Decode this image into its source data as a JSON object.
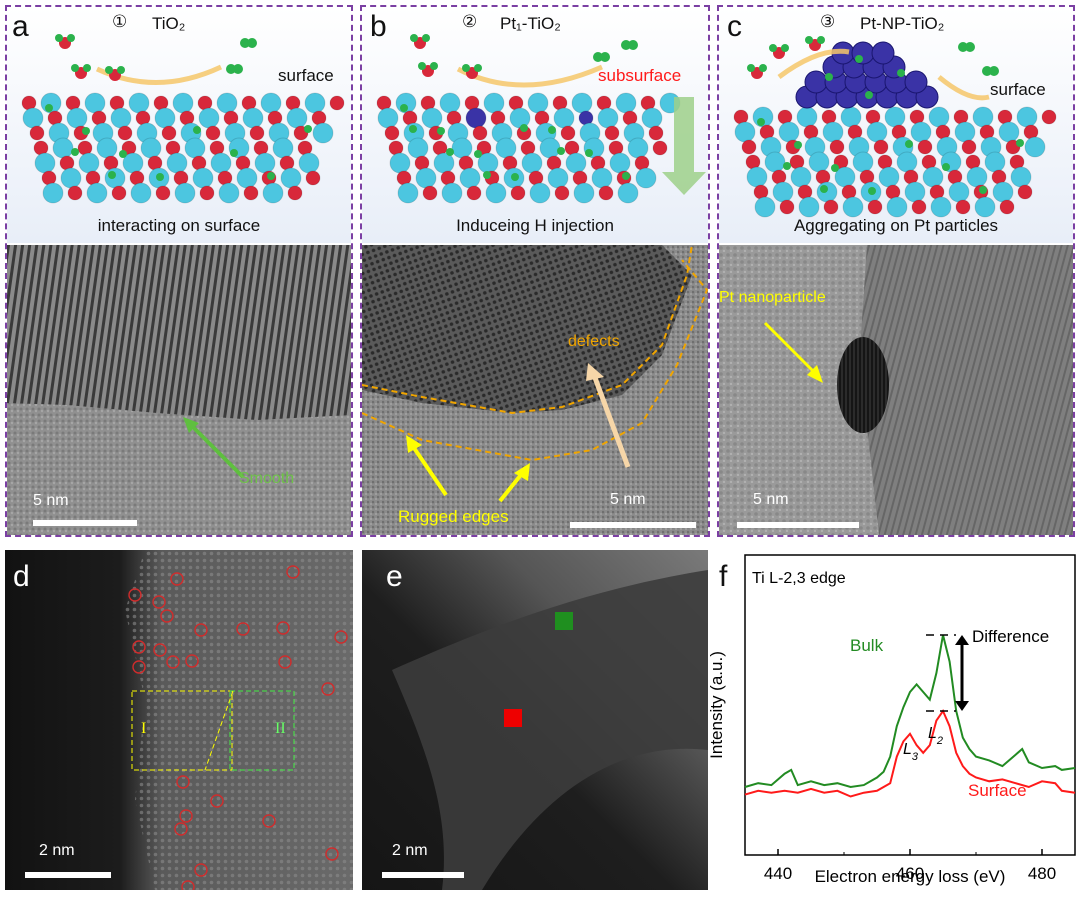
{
  "panels": {
    "a": {
      "letter": "a",
      "num": "①",
      "title": "TiO₂",
      "surface": "surface",
      "caption": "interacting on surface",
      "scale": "5 nm",
      "smooth": "Smooth"
    },
    "b": {
      "letter": "b",
      "num": "②",
      "title": "Pt₁-TiO₂",
      "subsurface": "subsurface",
      "caption": "Induceing H injection",
      "scale": "5 nm",
      "defects": "defects",
      "rugged": "Rugged edges"
    },
    "c": {
      "letter": "c",
      "num": "③",
      "title": "Pt-NP-TiO₂",
      "surface": "surface",
      "caption": "Aggregating on Pt particles",
      "scale": "5 nm",
      "np": "Pt nanoparticle"
    },
    "d": {
      "letter": "d",
      "scale": "2 nm",
      "region1": "I",
      "region2": "II"
    },
    "e": {
      "letter": "e",
      "scale": "2 nm"
    },
    "f": {
      "letter": "f"
    }
  },
  "colors": {
    "dash": "#7b3fa3",
    "ti": "#4cc6e0",
    "o": "#d8283a",
    "h": "#2bb24c",
    "pt": "#3a33a6",
    "bulk": "#228b22",
    "surfaceLine": "#ff1a1a",
    "yellow": "#ffff00",
    "orange": "#f0a500"
  },
  "chart_data": {
    "type": "line",
    "title": "Ti L-2,3 edge",
    "xlabel": "Electron energy loss (eV)",
    "ylabel": "Intensity (a.u.)",
    "xlim": [
      435,
      485
    ],
    "xticks": [
      440,
      460,
      480
    ],
    "series": [
      {
        "name": "Bulk",
        "x": [
          435,
          437,
          439,
          441,
          442,
          443,
          445,
          447,
          449,
          451,
          453,
          455,
          456,
          457,
          458,
          459,
          460,
          461,
          462,
          463,
          464,
          465,
          466,
          467,
          468,
          469,
          470,
          472,
          474,
          476,
          477,
          478,
          480,
          482,
          483,
          485
        ],
        "y": [
          0.2,
          0.22,
          0.21,
          0.27,
          0.29,
          0.21,
          0.23,
          0.21,
          0.22,
          0.2,
          0.21,
          0.25,
          0.28,
          0.36,
          0.52,
          0.62,
          0.7,
          0.74,
          0.7,
          0.66,
          0.8,
          1.0,
          0.86,
          0.6,
          0.46,
          0.4,
          0.36,
          0.34,
          0.31,
          0.37,
          0.4,
          0.33,
          0.3,
          0.31,
          0.29,
          0.3
        ]
      },
      {
        "name": "Surface",
        "x": [
          435,
          437,
          439,
          441,
          443,
          445,
          447,
          449,
          451,
          453,
          455,
          457,
          458,
          459,
          460,
          461,
          462,
          463,
          464,
          465,
          466,
          467,
          468,
          469,
          470,
          472,
          474,
          476,
          478,
          480,
          482,
          483,
          485
        ],
        "y": [
          0.16,
          0.18,
          0.17,
          0.18,
          0.17,
          0.19,
          0.17,
          0.18,
          0.15,
          0.17,
          0.18,
          0.22,
          0.36,
          0.44,
          0.48,
          0.42,
          0.38,
          0.42,
          0.55,
          0.6,
          0.52,
          0.38,
          0.31,
          0.27,
          0.25,
          0.23,
          0.24,
          0.22,
          0.2,
          0.23,
          0.22,
          0.18,
          0.17
        ]
      }
    ],
    "annotations": [
      "L3",
      "L2",
      "Difference"
    ]
  }
}
